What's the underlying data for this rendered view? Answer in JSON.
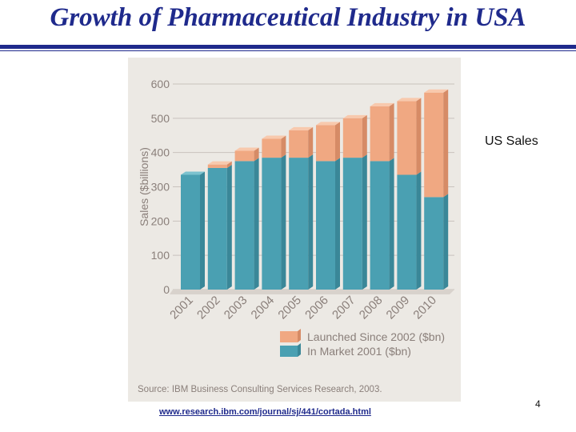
{
  "slide": {
    "title": "Growth of Pharmaceutical Industry in USA",
    "side_label": "US Sales",
    "link": "www.research.ibm.com/journal/sj/441/cortada.html",
    "page_number": "4"
  },
  "colors": {
    "title": "#1f2a8c",
    "panel": "#ece9e4",
    "base_front": "#4aa0b2",
    "base_side": "#3a8798",
    "base_top": "#7cc2cf",
    "launch_front": "#f0a882",
    "launch_side": "#d68b66",
    "launch_top": "#f8c9ad",
    "axis_text": "#8a7f7a"
  },
  "chart_data": {
    "type": "bar",
    "stacked": true,
    "title": "",
    "xlabel": "",
    "ylabel": "Sales ($billions)",
    "ylim": [
      0,
      600
    ],
    "yticks": [
      0,
      100,
      200,
      300,
      400,
      500,
      600
    ],
    "categories": [
      "2001",
      "2002",
      "2003",
      "2004",
      "2005",
      "2006",
      "2007",
      "2008",
      "2009",
      "2010"
    ],
    "series": [
      {
        "name": "In Market 2001 ($bn)",
        "values": [
          335,
          355,
          375,
          385,
          385,
          375,
          385,
          375,
          335,
          270
        ]
      },
      {
        "name": "Launched Since 2002 ($bn)",
        "values": [
          0,
          10,
          30,
          55,
          80,
          105,
          115,
          160,
          215,
          305
        ]
      }
    ],
    "legend": [
      {
        "label": "Launched Since 2002 ($bn)"
      },
      {
        "label": "In Market 2001 ($bn)"
      }
    ],
    "legend_position": "bottom-right",
    "source": "Source: IBM Business Consulting Services Research, 2003."
  }
}
